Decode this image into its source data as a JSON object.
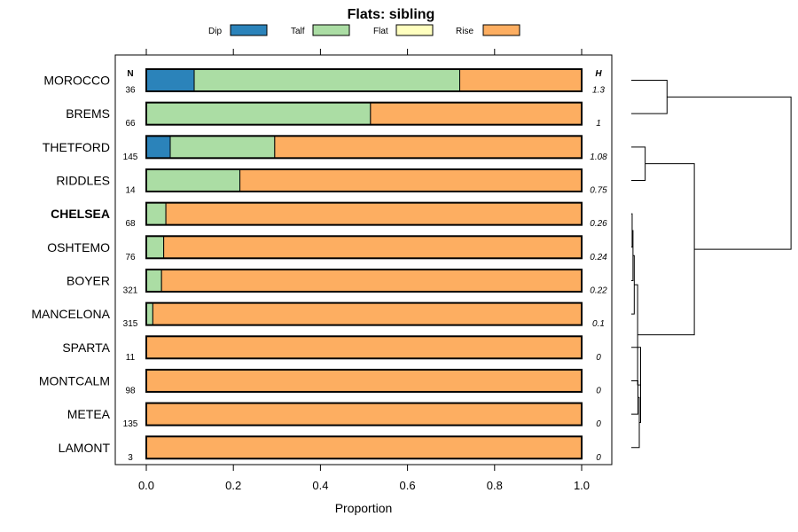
{
  "chart_data": {
    "type": "bar",
    "stacked": true,
    "orientation": "horizontal",
    "title": "Flats: sibling",
    "xlabel": "Proportion",
    "xlim": [
      0,
      1
    ],
    "xticks": [
      "0.0",
      "0.2",
      "0.4",
      "0.6",
      "0.8",
      "1.0"
    ],
    "xtick_values": [
      0,
      0.2,
      0.4,
      0.6,
      0.8,
      1.0
    ],
    "n_header": "N",
    "h_header": "H",
    "legend": [
      {
        "name": "Dip",
        "color": "#2b83ba"
      },
      {
        "name": "Talf",
        "color": "#abdda4"
      },
      {
        "name": "Flat",
        "color": "#ffffbf"
      },
      {
        "name": "Rise",
        "color": "#fdae61"
      }
    ],
    "categories": [
      "MOROCCO",
      "BREMS",
      "THETFORD",
      "RIDDLES",
      "CHELSEA",
      "OSHTEMO",
      "BOYER",
      "MANCELONA",
      "SPARTA",
      "MONTCALM",
      "METEA",
      "LAMONT"
    ],
    "highlighted": "CHELSEA",
    "n": [
      "36",
      "66",
      "145",
      "14",
      "68",
      "76",
      "321",
      "315",
      "11",
      "98",
      "135",
      "3"
    ],
    "h": [
      "1.3",
      "1",
      "1.08",
      "0.75",
      "0.26",
      "0.24",
      "0.22",
      "0.1",
      "0",
      "0",
      "0",
      "0"
    ],
    "series": [
      {
        "name": "Dip",
        "values": [
          0.11,
          0,
          0.055,
          0,
          0,
          0,
          0,
          0,
          0,
          0,
          0,
          0
        ]
      },
      {
        "name": "Talf",
        "values": [
          0.61,
          0.515,
          0.24,
          0.215,
          0.045,
          0.04,
          0.035,
          0.015,
          0,
          0,
          0,
          0
        ]
      },
      {
        "name": "Flat",
        "values": [
          0,
          0,
          0,
          0,
          0,
          0,
          0,
          0,
          0,
          0,
          0,
          0
        ]
      },
      {
        "name": "Rise",
        "values": [
          0.28,
          0.485,
          0.705,
          0.785,
          0.955,
          0.96,
          0.965,
          0.985,
          1,
          1,
          1,
          1
        ]
      }
    ],
    "dendrogram": {
      "merges": [
        {
          "a": "MOROCCO",
          "b": "BREMS",
          "height": 0.85
        },
        {
          "a": "THETFORD",
          "b": "RIDDLES",
          "height": 0.33
        },
        {
          "a": "CHELSEA",
          "b": "OSHTEMO",
          "height": 0.02
        },
        {
          "a": "CHELSEA+OSHTEMO",
          "b": "BOYER",
          "height": 0.04
        },
        {
          "a": "CHELSEA+OSHTEMO+BOYER",
          "b": "MANCELONA",
          "height": 0.07
        },
        {
          "a": "MONTCALM",
          "b": "METEA",
          "height": 0.0
        },
        {
          "a": "MONTCALM+METEA",
          "b": "LAMONT",
          "height": 0.0
        },
        {
          "a": "SPARTA",
          "b": "MONTCALM+METEA+LAMONT",
          "height": 0.0
        },
        {
          "a": "CHELSEA..MANCELONA",
          "b": "SPARTA..LAMONT",
          "height": 0.15
        },
        {
          "a": "THETFORD+RIDDLES",
          "b": "CHELSEA..LAMONT",
          "height": 1.5
        },
        {
          "a": "MOROCCO+BREMS",
          "b": "THETFORD..LAMONT",
          "height": 3.8
        }
      ]
    }
  }
}
